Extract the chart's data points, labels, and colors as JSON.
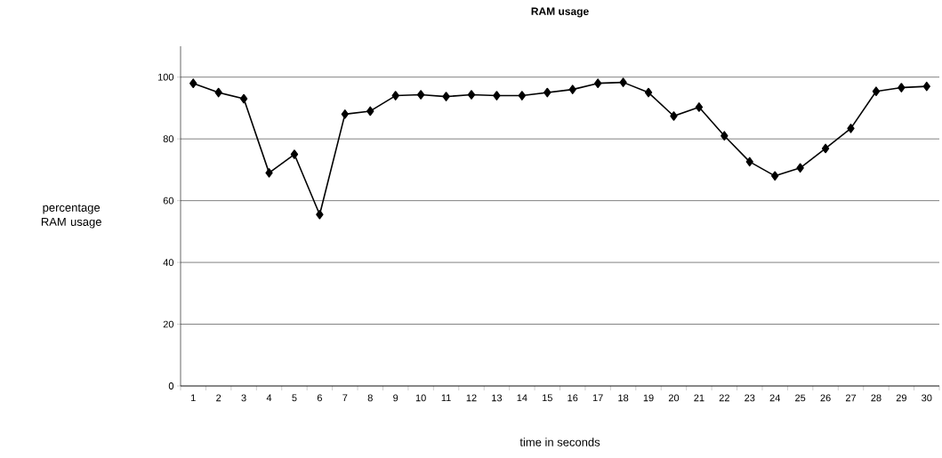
{
  "chart_data": {
    "type": "line",
    "title": "RAM usage",
    "xlabel": "time in seconds",
    "ylabel": "percentage RAM usage",
    "categories": [
      "1",
      "2",
      "3",
      "4",
      "5",
      "6",
      "7",
      "8",
      "9",
      "10",
      "11",
      "12",
      "13",
      "14",
      "15",
      "16",
      "17",
      "18",
      "19",
      "20",
      "21",
      "22",
      "23",
      "24",
      "25",
      "26",
      "27",
      "28",
      "29",
      "30"
    ],
    "series": [
      {
        "color": "#000000",
        "values": [
          98,
          95,
          93,
          69,
          75,
          55.5,
          88,
          89,
          94,
          94.3,
          93.7,
          94.3,
          94,
          94,
          95,
          96,
          98,
          98.3,
          95,
          87.4,
          90.3,
          81,
          72.6,
          68,
          70.6,
          76.9,
          83.4,
          95.4,
          96.6,
          97
        ]
      }
    ],
    "ylim": [
      0,
      110
    ],
    "yticks": [
      0,
      20,
      40,
      60,
      80,
      100
    ],
    "grid": "y",
    "marker": "diamond",
    "line_style": "solid"
  }
}
